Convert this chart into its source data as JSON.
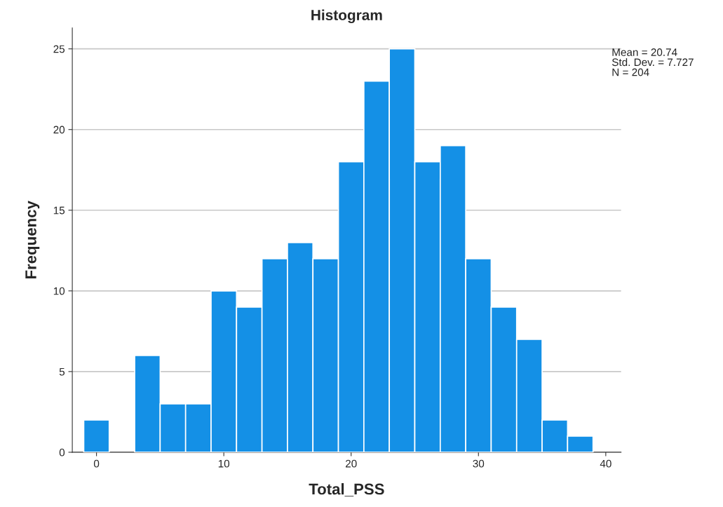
{
  "chart_data": {
    "type": "histogram",
    "title": "Histogram",
    "xlabel": "Total_PSS",
    "ylabel": "Frequency",
    "bins": [
      -1,
      1,
      3,
      5,
      7,
      9,
      11,
      13,
      15,
      17,
      19,
      21,
      23,
      25,
      27,
      29,
      31,
      33,
      35,
      37,
      39
    ],
    "values": [
      2,
      0,
      6,
      3,
      3,
      10,
      9,
      12,
      13,
      12,
      18,
      23,
      25,
      18,
      19,
      12,
      9,
      7,
      2,
      1
    ],
    "color": "#1490e6",
    "xlim": [
      -1.9,
      41.2
    ],
    "xticks": [
      0,
      10,
      20,
      30,
      40
    ],
    "ylim": [
      0,
      26.3
    ],
    "yticks": [
      0,
      5,
      10,
      15,
      20,
      25
    ],
    "grid": "y",
    "annotations": [
      "Mean = 20.74\nStd. Dev. = 7.727\nN = 204"
    ]
  }
}
